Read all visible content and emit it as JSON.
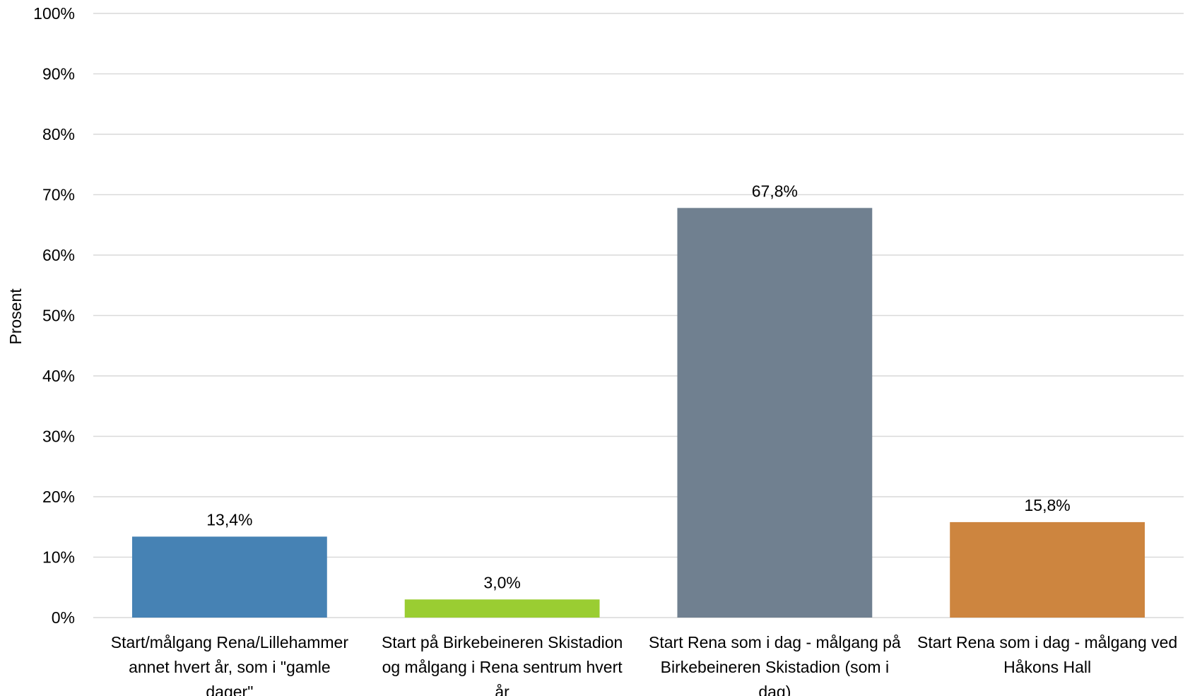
{
  "chart_data": {
    "type": "bar",
    "title": "",
    "xlabel": "",
    "ylabel": "Prosent",
    "ylim": [
      0,
      100
    ],
    "yticks": [
      "0%",
      "10%",
      "20%",
      "30%",
      "40%",
      "50%",
      "60%",
      "70%",
      "80%",
      "90%",
      "100%"
    ],
    "grid": true,
    "legend": "none",
    "categories": [
      "Start/målgang Rena/Lillehammer annet hvert år, som i \"gamle dager\"",
      "Start på Birkebeineren Skistadion og målgang i Rena sentrum hvert år",
      "Start Rena som i dag - målgang på Birkebeineren Skistadion (som i dag)",
      "Start Rena som i dag - målgang ved Håkons Hall"
    ],
    "category_lines": [
      [
        "Start/målgang Rena/Lillehammer",
        "annet hvert år, som i \"gamle",
        "dager\""
      ],
      [
        "Start på Birkebeineren Skistadion",
        "og målgang i Rena sentrum hvert",
        "år"
      ],
      [
        "Start Rena som i dag - målgang på",
        "Birkebeineren Skistadion (som i",
        "dag)"
      ],
      [
        "Start Rena som i dag - målgang ved",
        "Håkons Hall"
      ]
    ],
    "values": [
      13.4,
      3.0,
      67.8,
      15.8
    ],
    "data_labels": [
      "13,4%",
      "3,0%",
      "67,8%",
      "15,8%"
    ],
    "colors": [
      "#4682b4",
      "#9acd32",
      "#708090",
      "#cd853f"
    ]
  }
}
